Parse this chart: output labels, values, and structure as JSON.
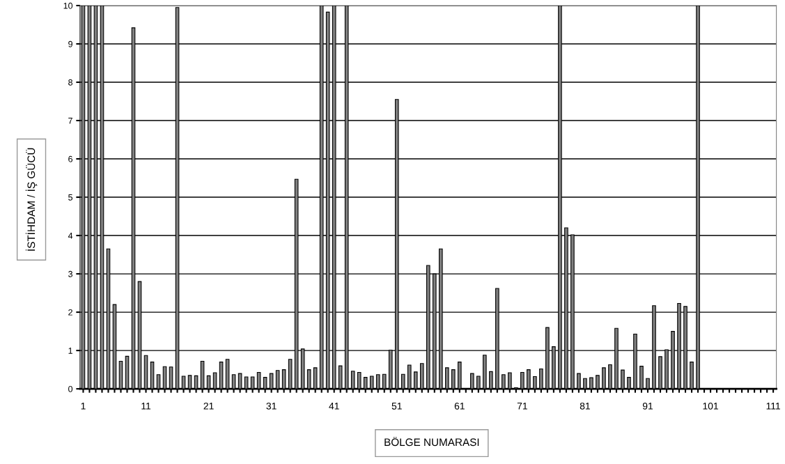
{
  "chart_data": {
    "type": "bar",
    "xlabel": "BÖLGE NUMARASI",
    "ylabel": "İSTİHDAM / İŞ GÜCÜ",
    "categories": [
      "1",
      null,
      null,
      null,
      null,
      null,
      null,
      null,
      null,
      null,
      "11",
      null,
      null,
      null,
      null,
      null,
      null,
      null,
      null,
      null,
      "21",
      null,
      null,
      null,
      null,
      null,
      null,
      null,
      null,
      null,
      "31",
      null,
      null,
      null,
      null,
      null,
      null,
      null,
      null,
      null,
      "41",
      null,
      null,
      null,
      null,
      null,
      null,
      null,
      null,
      null,
      "51",
      null,
      null,
      null,
      null,
      null,
      null,
      null,
      null,
      null,
      "61",
      null,
      null,
      null,
      null,
      null,
      null,
      null,
      null,
      null,
      "71",
      null,
      null,
      null,
      null,
      null,
      null,
      null,
      null,
      null,
      "81",
      null,
      null,
      null,
      null,
      null,
      null,
      null,
      null,
      null,
      "91",
      null,
      null,
      null,
      null,
      null,
      null,
      null,
      null,
      null,
      "101",
      null,
      null,
      null,
      null,
      null,
      null,
      null,
      null,
      null,
      "111"
    ],
    "values": [
      10,
      10,
      10,
      10,
      3.65,
      2.2,
      0.72,
      0.85,
      9.42,
      2.8,
      0.87,
      0.7,
      0.37,
      0.58,
      0.57,
      9.95,
      0.33,
      0.35,
      0.34,
      0.72,
      0.34,
      0.42,
      0.7,
      0.77,
      0.37,
      0.4,
      0.31,
      0.31,
      0.43,
      0.3,
      0.4,
      0.48,
      0.5,
      0.77,
      5.47,
      1.04,
      0.5,
      0.55,
      10,
      9.83,
      10,
      0.6,
      10,
      0.46,
      0.43,
      0.3,
      0.33,
      0.37,
      0.38,
      1.01,
      7.55,
      0.38,
      0.62,
      0.44,
      0.66,
      3.22,
      3.0,
      3.65,
      0.55,
      0.5,
      0.7,
      0,
      0.4,
      0.33,
      0.88,
      0.45,
      2.62,
      0.37,
      0.42,
      0.03,
      0.43,
      0.5,
      0.32,
      0.52,
      1.6,
      1.1,
      10,
      4.2,
      4.02,
      0.4,
      0.27,
      0.29,
      0.35,
      0.55,
      0.63,
      1.58,
      0.49,
      0.3,
      1.43,
      0.59,
      0.27,
      2.17,
      0.84,
      1.02,
      1.5,
      2.23,
      2.15,
      0.7,
      10,
      0,
      0,
      0,
      0,
      0,
      0,
      0,
      0,
      0,
      0,
      0,
      0
    ],
    "color": "#808080",
    "ylim": [
      0,
      10
    ],
    "yticks": [
      0,
      1,
      2,
      3,
      4,
      5,
      6,
      7,
      8,
      9,
      10
    ],
    "grid": "y"
  }
}
